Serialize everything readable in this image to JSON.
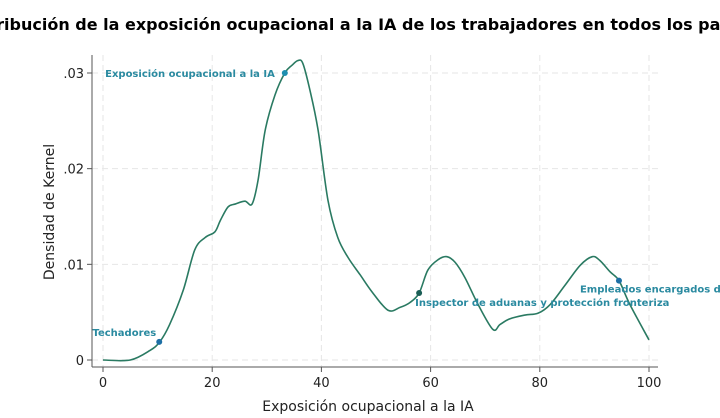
{
  "chart_data": {
    "type": "line",
    "title": "Distribución de la exposición ocupacional a la IA de los trabajadores en todos los países",
    "xlabel": "Exposición ocupacional a la IA",
    "ylabel": "Densidad de Kernel",
    "xlim": [
      0,
      100
    ],
    "ylim": [
      0,
      0.031
    ],
    "xticks": [
      0,
      20,
      40,
      60,
      80,
      100
    ],
    "xtick_labels": [
      "0",
      "20",
      "40",
      "60",
      "80",
      "100"
    ],
    "yticks": [
      0,
      0.01,
      0.02,
      0.03
    ],
    "ytick_labels": [
      "0",
      ".01",
      ".02",
      ".03"
    ],
    "grid": true,
    "line_color": "#2a7a62",
    "series": [
      {
        "name": "Densidad de Kernel",
        "x": [
          0,
          5,
          8.6,
          10.4,
          12.2,
          14.7,
          16.8,
          18.7,
          20.5,
          21.5,
          22.9,
          24.2,
          26,
          27.3,
          28.4,
          29.7,
          31.5,
          33.3,
          34.6,
          35.7,
          36.6,
          37.9,
          39.4,
          41.2,
          43,
          44.9,
          47.1,
          49.3,
          52.2,
          54.4,
          56.2,
          57.9,
          59.5,
          61.4,
          63,
          64.5,
          66.3,
          68.7,
          71.4,
          72.7,
          74.5,
          77.3,
          79.7,
          81.9,
          84.6,
          87.4,
          89.6,
          91,
          92.9,
          94.5,
          96.5,
          100
        ],
        "y": [
          0,
          0,
          0.001,
          0.0019,
          0.0037,
          0.0073,
          0.0115,
          0.0128,
          0.0134,
          0.0146,
          0.016,
          0.0163,
          0.0166,
          0.0163,
          0.0188,
          0.024,
          0.0277,
          0.03,
          0.0308,
          0.0313,
          0.031,
          0.0282,
          0.024,
          0.0167,
          0.0128,
          0.0107,
          0.0089,
          0.0071,
          0.0052,
          0.0055,
          0.006,
          0.007,
          0.0094,
          0.0105,
          0.0108,
          0.0102,
          0.0086,
          0.0058,
          0.0032,
          0.0037,
          0.0043,
          0.0047,
          0.0049,
          0.0058,
          0.0078,
          0.0099,
          0.0108,
          0.0104,
          0.0092,
          0.0083,
          0.0058,
          0.0021
        ]
      }
    ],
    "annotations": [
      {
        "label": "Techadores",
        "x": 10.3,
        "y": 0.0019,
        "color": "#2a8aa0",
        "marker": "#1d6fa5"
      },
      {
        "label": "Exposición ocupacional a la IA",
        "x": 33.3,
        "y": 0.03,
        "color": "#2a8aa0",
        "marker": "#1d8fb0"
      },
      {
        "label": "Inspector de aduanas y protección fronteriza",
        "x": 57.9,
        "y": 0.007,
        "color": "#2a8aa0",
        "marker": "#1b5e56"
      },
      {
        "label": "Empleados encargados de la m",
        "x": 94.5,
        "y": 0.0083,
        "color": "#2a8aa0",
        "marker": "#1d6fa5"
      }
    ]
  }
}
